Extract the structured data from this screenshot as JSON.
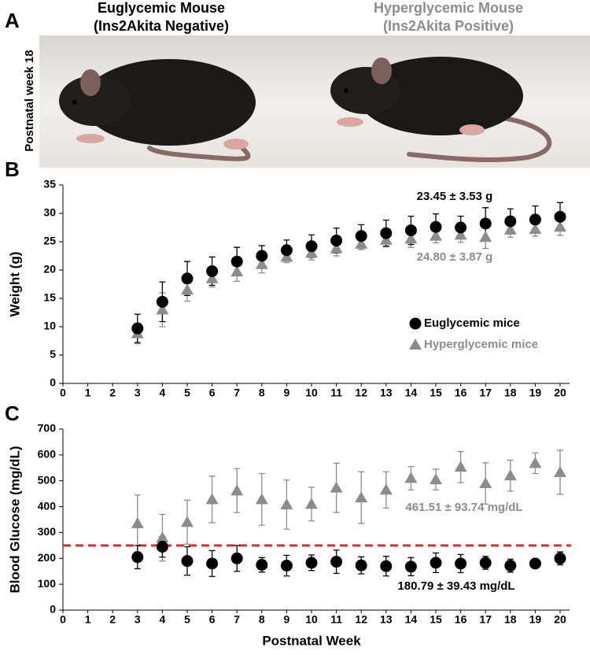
{
  "panel_a": {
    "label": "A",
    "captions": [
      {
        "title": "Euglycemic Mouse",
        "subtitle": "(Ins2Akita Negative)",
        "color": "#000000"
      },
      {
        "title": "Hyperglycemic Mouse",
        "subtitle": "(Ins2Akita Positive)",
        "color": "#8c8c8c"
      }
    ],
    "side_label": "Postnatal week 18"
  },
  "chart_data": [
    {
      "type": "scatter",
      "panel_label": "B",
      "y_label": "Weight (g)",
      "x": [
        3,
        4,
        5,
        6,
        7,
        8,
        9,
        10,
        11,
        12,
        13,
        14,
        15,
        16,
        17,
        18,
        19,
        20
      ],
      "xlim": [
        0,
        20
      ],
      "xticks": [
        0,
        1,
        2,
        3,
        4,
        5,
        6,
        7,
        8,
        9,
        10,
        11,
        12,
        13,
        14,
        15,
        16,
        17,
        18,
        19,
        20
      ],
      "ylim": [
        0,
        35
      ],
      "yticks": [
        0,
        5,
        10,
        15,
        20,
        25,
        30,
        35
      ],
      "legend": "right",
      "series": [
        {
          "name": "Hyperglycemic mice",
          "color": "#8c8c8c",
          "marker": "triangle",
          "values": [
            8.8,
            13,
            16.5,
            18.5,
            19.7,
            21,
            22.3,
            23,
            23.8,
            24.6,
            25.3,
            25.5,
            26,
            26.2,
            25.8,
            27.1,
            27.2,
            27.6
          ],
          "errors": [
            1.8,
            3,
            2,
            1.5,
            1.7,
            1.5,
            1,
            1.2,
            1.3,
            1,
            1.2,
            1.5,
            1.2,
            1.3,
            2,
            1.3,
            1.2,
            1.5
          ]
        },
        {
          "name": "Euglycemic mice",
          "color": "#000000",
          "marker": "circle",
          "values": [
            9.7,
            14.4,
            18.5,
            19.8,
            21.5,
            22.5,
            23.5,
            24.2,
            25.2,
            26,
            26.5,
            27,
            27.6,
            27.5,
            28.2,
            28.6,
            28.9,
            29.4
          ],
          "errors": [
            2.5,
            3.5,
            3,
            2.5,
            2.5,
            1.8,
            1.8,
            2,
            2.2,
            2,
            2.3,
            2.5,
            2.3,
            2,
            2.8,
            2.2,
            2.4,
            2.5
          ]
        }
      ],
      "annotations": [
        {
          "text": "23.45 ± 3.53 g",
          "color": "#000000"
        },
        {
          "text": "24.80 ± 3.87 g",
          "color": "#8c8c8c"
        }
      ]
    },
    {
      "type": "scatter",
      "panel_label": "C",
      "y_label": "Blood Glucose (mg/dL)",
      "x_label": "Postnatal Week",
      "x": [
        3,
        4,
        5,
        6,
        7,
        8,
        9,
        10,
        11,
        12,
        13,
        14,
        15,
        16,
        17,
        18,
        19,
        20
      ],
      "xlim": [
        0,
        20
      ],
      "xticks": [
        0,
        1,
        2,
        3,
        4,
        5,
        6,
        7,
        8,
        9,
        10,
        11,
        12,
        13,
        14,
        15,
        16,
        17,
        18,
        19,
        20
      ],
      "ylim": [
        0,
        700
      ],
      "yticks": [
        0,
        100,
        200,
        300,
        400,
        500,
        600,
        700
      ],
      "reference_line": {
        "value": 250,
        "color": "#e8262a",
        "style": "dashed"
      },
      "series": [
        {
          "color": "#8c8c8c",
          "marker": "triangle",
          "values": [
            335,
            280,
            340,
            428,
            462,
            428,
            408,
            410,
            473,
            435,
            465,
            510,
            505,
            553,
            490,
            520,
            568,
            533
          ],
          "errors": [
            110,
            90,
            85,
            90,
            85,
            100,
            95,
            65,
            95,
            100,
            70,
            45,
            40,
            60,
            80,
            60,
            40,
            85
          ]
        },
        {
          "color": "#000000",
          "marker": "circle",
          "values": [
            205,
            245,
            190,
            180,
            200,
            175,
            172,
            183,
            187,
            173,
            170,
            168,
            183,
            180,
            183,
            172,
            180,
            200
          ],
          "errors": [
            45,
            40,
            55,
            50,
            50,
            28,
            40,
            30,
            45,
            33,
            38,
            35,
            38,
            35,
            25,
            25,
            12,
            25
          ]
        }
      ],
      "annotations": [
        {
          "text": "461.51 ± 93.74 mg/dL",
          "color": "#8c8c8c"
        },
        {
          "text": "180.79 ± 39.43 mg/dL",
          "color": "#000000"
        }
      ]
    }
  ]
}
